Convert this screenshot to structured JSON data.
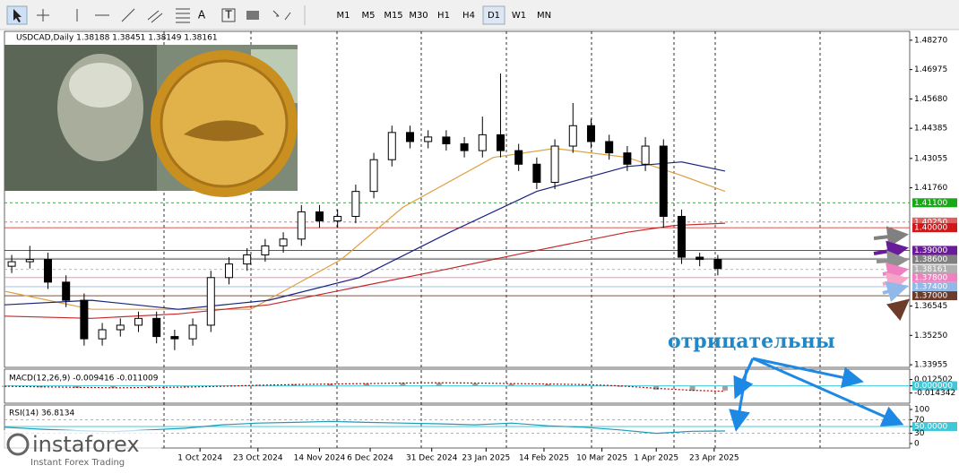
{
  "toolbar": {
    "text_tools": [
      "A",
      "T"
    ],
    "timeframes": [
      "M1",
      "M5",
      "M15",
      "M30",
      "H1",
      "H4",
      "D1",
      "W1",
      "MN"
    ],
    "active": "D1"
  },
  "chart_data": [
    {
      "type": "candlestick",
      "title": "USDCAD,Daily  1.38188 1.38451 1.38149 1.38161",
      "xlim": [
        0,
        250
      ],
      "ylim": [
        1.3384,
        1.4866
      ],
      "yticks": [
        {
          "value": 1.4827,
          "label": "1.48270"
        },
        {
          "value": 1.46975,
          "label": "1.46975"
        },
        {
          "value": 1.4568,
          "label": "1.45680"
        },
        {
          "value": 1.44385,
          "label": "1.44385"
        },
        {
          "value": 1.43055,
          "label": "1.43055"
        },
        {
          "value": 1.4176,
          "label": "1.41760"
        },
        {
          "value": 1.36545,
          "label": "1.36545"
        },
        {
          "value": 1.3525,
          "label": "1.35250"
        },
        {
          "value": 1.33955,
          "label": "1.33955"
        }
      ],
      "xticks": [
        {
          "value": 54,
          "label": "1 Oct 2024"
        },
        {
          "value": 70,
          "label": "23 Oct 2024"
        },
        {
          "value": 87,
          "label": "14 Nov 2024"
        },
        {
          "value": 101,
          "label": "6 Dec 2024"
        },
        {
          "value": 118,
          "label": "31 Dec 2024"
        },
        {
          "value": 133,
          "label": "23 Jan 2025"
        },
        {
          "value": 149,
          "label": "14 Feb 2025"
        },
        {
          "value": 165,
          "label": "10 Mar 2025"
        },
        {
          "value": 180,
          "label": "1 Apr 2025"
        },
        {
          "value": 196,
          "label": "23 Apr 2025"
        }
      ],
      "x": [
        2,
        7,
        12,
        17,
        22,
        27,
        32,
        37,
        42,
        47,
        52,
        57,
        62,
        67,
        72,
        77,
        82,
        87,
        92,
        97,
        102,
        107,
        112,
        117,
        122,
        127,
        132,
        137,
        142,
        147,
        152,
        157,
        162,
        167,
        172,
        177,
        182,
        187,
        192,
        197
      ],
      "open": [
        1.383,
        1.385,
        1.386,
        1.376,
        1.368,
        1.351,
        1.355,
        1.357,
        1.36,
        1.352,
        1.351,
        1.357,
        1.378,
        1.384,
        1.388,
        1.392,
        1.395,
        1.407,
        1.403,
        1.405,
        1.416,
        1.43,
        1.442,
        1.438,
        1.44,
        1.437,
        1.434,
        1.441,
        1.434,
        1.428,
        1.42,
        1.436,
        1.445,
        1.438,
        1.433,
        1.428,
        1.436,
        1.405,
        1.387,
        1.386
      ],
      "high": [
        1.388,
        1.392,
        1.389,
        1.379,
        1.371,
        1.358,
        1.36,
        1.363,
        1.363,
        1.355,
        1.36,
        1.381,
        1.387,
        1.391,
        1.395,
        1.398,
        1.41,
        1.41,
        1.408,
        1.419,
        1.433,
        1.445,
        1.445,
        1.443,
        1.443,
        1.44,
        1.449,
        1.468,
        1.437,
        1.431,
        1.439,
        1.455,
        1.448,
        1.441,
        1.436,
        1.44,
        1.439,
        1.408,
        1.389,
        1.388
      ],
      "low": [
        1.38,
        1.382,
        1.373,
        1.365,
        1.348,
        1.348,
        1.352,
        1.354,
        1.349,
        1.346,
        1.348,
        1.354,
        1.375,
        1.381,
        1.385,
        1.389,
        1.392,
        1.4,
        1.4,
        1.402,
        1.413,
        1.427,
        1.435,
        1.435,
        1.434,
        1.431,
        1.431,
        1.431,
        1.425,
        1.417,
        1.417,
        1.433,
        1.435,
        1.43,
        1.425,
        1.425,
        1.4,
        1.384,
        1.383,
        1.379
      ],
      "close": [
        1.385,
        1.386,
        1.376,
        1.368,
        1.351,
        1.355,
        1.357,
        1.36,
        1.352,
        1.351,
        1.357,
        1.378,
        1.384,
        1.388,
        1.392,
        1.395,
        1.407,
        1.403,
        1.405,
        1.416,
        1.43,
        1.442,
        1.438,
        1.44,
        1.437,
        1.434,
        1.441,
        1.434,
        1.428,
        1.42,
        1.436,
        1.445,
        1.438,
        1.433,
        1.428,
        1.436,
        1.405,
        1.387,
        1.386,
        1.382
      ],
      "lines": [
        {
          "color": "#e0a040",
          "x": [
            0,
            24,
            48,
            68,
            93,
            110,
            135,
            152,
            172,
            187,
            199
          ],
          "values": [
            1.372,
            1.364,
            1.364,
            1.364,
            1.386,
            1.409,
            1.431,
            1.435,
            1.431,
            1.423,
            1.416
          ]
        },
        {
          "color": "#1a237e",
          "x": [
            0,
            24,
            48,
            73,
            98,
            123,
            147,
            172,
            187,
            199
          ],
          "values": [
            1.366,
            1.368,
            1.364,
            1.368,
            1.378,
            1.398,
            1.416,
            1.427,
            1.429,
            1.425
          ]
        },
        {
          "color": "#c62828",
          "x": [
            0,
            24,
            48,
            73,
            98,
            123,
            147,
            172,
            185,
            199
          ],
          "values": [
            1.361,
            1.36,
            1.362,
            1.366,
            1.374,
            1.382,
            1.39,
            1.398,
            1.401,
            1.402
          ]
        }
      ],
      "levels": [
        {
          "value": 1.411,
          "label": "1.41100",
          "color": "#18a818",
          "dashed": true
        },
        {
          "value": 1.4025,
          "label": "1.40250",
          "color": "#e06060",
          "dashed": true
        },
        {
          "value": 1.4,
          "label": "1.40000",
          "color": "#d01818",
          "dashed": false
        },
        {
          "value": 1.3865,
          "label": "1.38650",
          "color": "#909090",
          "dashed": false
        },
        {
          "value": 1.39,
          "label": "1.39000",
          "color": "#6a1b9a",
          "dashed": false
        },
        {
          "value": 1.386,
          "label": "1.38600",
          "color": "#808080",
          "dashed": false
        },
        {
          "value": 1.38161,
          "label": "1.38161",
          "color": "#b0b0b0",
          "dashed": true
        },
        {
          "value": 1.378,
          "label": "1.37800",
          "color": "#f080c0",
          "dashed": false
        },
        {
          "value": 1.374,
          "label": "1.37400",
          "color": "#90b8e8",
          "dashed": false
        },
        {
          "value": 1.37,
          "label": "1.37000",
          "color": "#6d3b2a",
          "dashed": false
        }
      ],
      "annotation": "отрицательны"
    },
    {
      "type": "bar",
      "title": "MACD(12,26,9) -0.009416 -0.011009",
      "color": "#a0a0a0",
      "xlim": [
        0,
        250
      ],
      "ylim": [
        -0.024,
        0.0225
      ],
      "yticks": [
        0.012502,
        {
          "value": 0,
          "label": "0.000000",
          "highlight": "#40c8d8"
        },
        -0.014342
      ],
      "x": [
        0,
        10,
        20,
        30,
        40,
        50,
        60,
        70,
        80,
        90,
        100,
        110,
        120,
        130,
        140,
        150,
        160,
        170,
        180,
        190,
        199
      ],
      "values": [
        -0.002,
        -0.003,
        -0.004,
        -0.004,
        -0.003,
        -0.002,
        0,
        0.002,
        0.003,
        0.004,
        0.005,
        0.006,
        0.006,
        0.005,
        0.004,
        0.003,
        0.002,
        -0.002,
        -0.008,
        -0.01,
        -0.009416
      ],
      "signal_color": "#c00000",
      "signal_values": [
        -0.001,
        -0.002,
        -0.003,
        -0.004,
        -0.0035,
        -0.0025,
        -0.001,
        0.001,
        0.0025,
        0.0035,
        0.0045,
        0.0055,
        0.006,
        0.0055,
        0.0045,
        0.0035,
        0.0025,
        0,
        -0.005,
        -0.009,
        -0.011009
      ]
    },
    {
      "type": "line",
      "title": "RSI(14) 36.8134",
      "color": "#1e9bb8",
      "xlim": [
        0,
        250
      ],
      "ylim": [
        0,
        100
      ],
      "yticks": [
        100,
        70,
        {
          "value": 50,
          "label": "50.0000",
          "highlight": "#40c8d8"
        },
        30,
        0
      ],
      "levels": [
        70,
        30
      ],
      "x": [
        0,
        10,
        20,
        30,
        40,
        50,
        60,
        70,
        80,
        90,
        100,
        110,
        120,
        130,
        140,
        150,
        160,
        170,
        180,
        190,
        199
      ],
      "values": [
        48,
        42,
        38,
        35,
        40,
        45,
        55,
        60,
        62,
        65,
        62,
        60,
        58,
        55,
        60,
        52,
        48,
        40,
        30,
        36,
        36.8134
      ]
    }
  ],
  "watermark": {
    "brand": "instaforex",
    "tagline": "Instant Forex Trading"
  }
}
